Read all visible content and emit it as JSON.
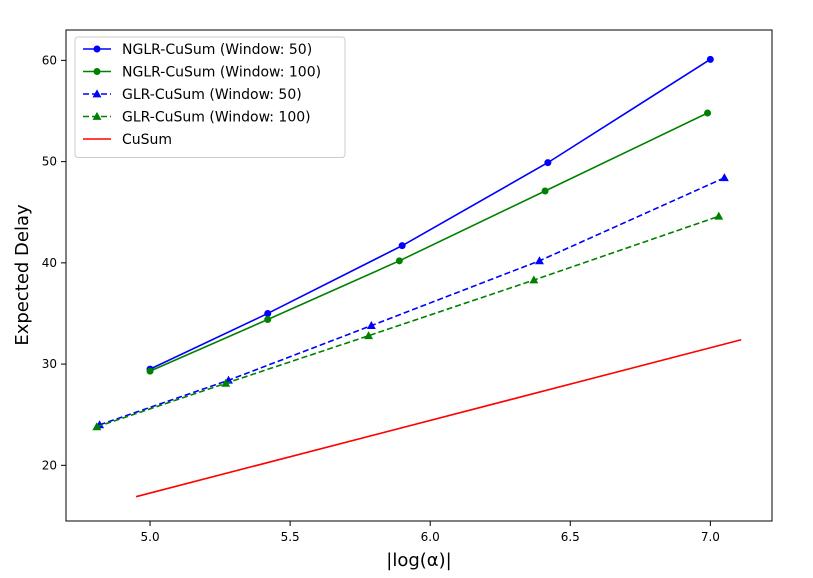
{
  "chart_data": {
    "type": "line",
    "title": "",
    "xlabel": "|log(α)|",
    "ylabel": "Expected Delay",
    "xlim": [
      4.7,
      7.22
    ],
    "ylim": [
      14.5,
      63.0
    ],
    "xticks": [
      "5.0",
      "5.5",
      "6.0",
      "6.5",
      "7.0"
    ],
    "yticks": [
      "20",
      "30",
      "40",
      "50",
      "60"
    ],
    "grid": false,
    "legend_position": "top-left",
    "series": [
      {
        "name": "NGLR-CuSum (Window: 50)",
        "color": "#0000ff",
        "linestyle": "solid",
        "marker": "circle",
        "x": [
          5.0,
          5.42,
          5.9,
          6.42,
          7.0
        ],
        "y": [
          29.5,
          35.0,
          41.7,
          49.9,
          60.1
        ]
      },
      {
        "name": "NGLR-CuSum (Window: 100)",
        "color": "#008000",
        "linestyle": "solid",
        "marker": "circle",
        "x": [
          5.0,
          5.42,
          5.89,
          6.41,
          6.99
        ],
        "y": [
          29.3,
          34.4,
          40.2,
          47.1,
          54.8
        ]
      },
      {
        "name": "GLR-CuSum (Window: 50)",
        "color": "#0000ff",
        "linestyle": "dashed",
        "marker": "triangle",
        "x": [
          4.82,
          5.28,
          5.79,
          6.39,
          7.05
        ],
        "y": [
          24.0,
          28.4,
          33.8,
          40.2,
          48.4
        ]
      },
      {
        "name": "GLR-CuSum (Window: 100)",
        "color": "#008000",
        "linestyle": "dashed",
        "marker": "triangle",
        "x": [
          4.81,
          5.27,
          5.78,
          6.37,
          7.03
        ],
        "y": [
          23.8,
          28.1,
          32.8,
          38.3,
          44.6
        ]
      },
      {
        "name": "CuSum",
        "color": "#ff0000",
        "linestyle": "solid",
        "marker": "none",
        "x": [
          4.95,
          7.11
        ],
        "y": [
          16.9,
          32.4
        ]
      }
    ]
  }
}
